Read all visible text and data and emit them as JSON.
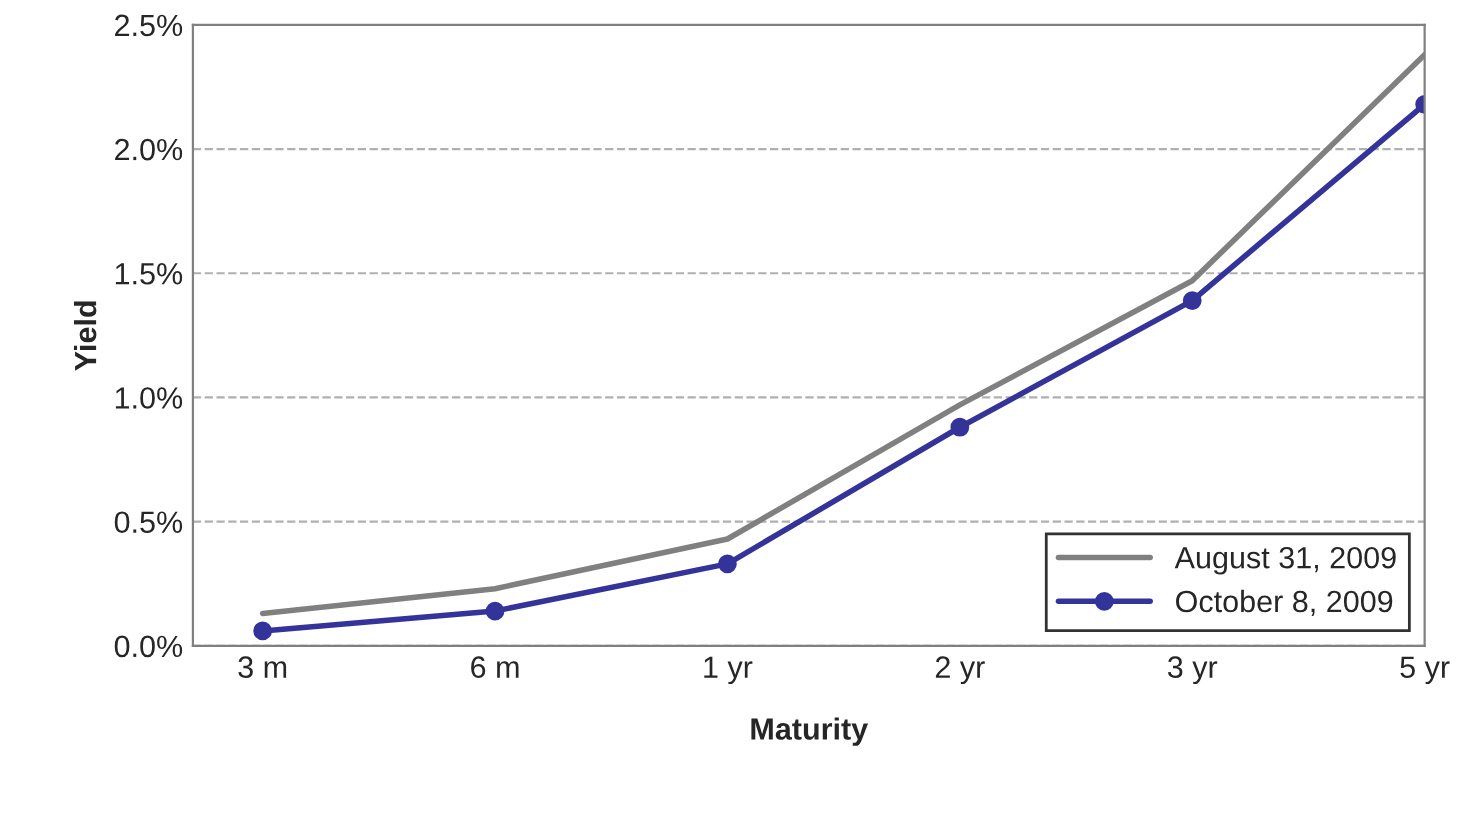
{
  "chart_data": {
    "type": "line",
    "xlabel": "Maturity",
    "ylabel": "Yield",
    "categories": [
      "3 m",
      "6 m",
      "1 yr",
      "2 yr",
      "3 yr",
      "5 yr"
    ],
    "series": [
      {
        "name": "August 31, 2009",
        "color": "#808080",
        "values": [
          0.13,
          0.23,
          0.43,
          0.97,
          1.47,
          2.38
        ],
        "marker": "none"
      },
      {
        "name": "October 8, 2009",
        "color": "#333399",
        "values": [
          0.06,
          0.14,
          0.33,
          0.88,
          1.39,
          2.18
        ],
        "marker": "circle"
      }
    ],
    "ylim": [
      0,
      2.5
    ],
    "yticks": [
      {
        "value": 0,
        "label": "0.0%"
      },
      {
        "value": 0.5,
        "label": "0.5%"
      },
      {
        "value": 1,
        "label": "1.0%"
      },
      {
        "value": 1.5,
        "label": "1.5%"
      },
      {
        "value": 2,
        "label": "2.0%"
      },
      {
        "value": 2.5,
        "label": "2.5%"
      }
    ],
    "grid": "y",
    "legend": "bottom right",
    "line_style": "solid"
  }
}
